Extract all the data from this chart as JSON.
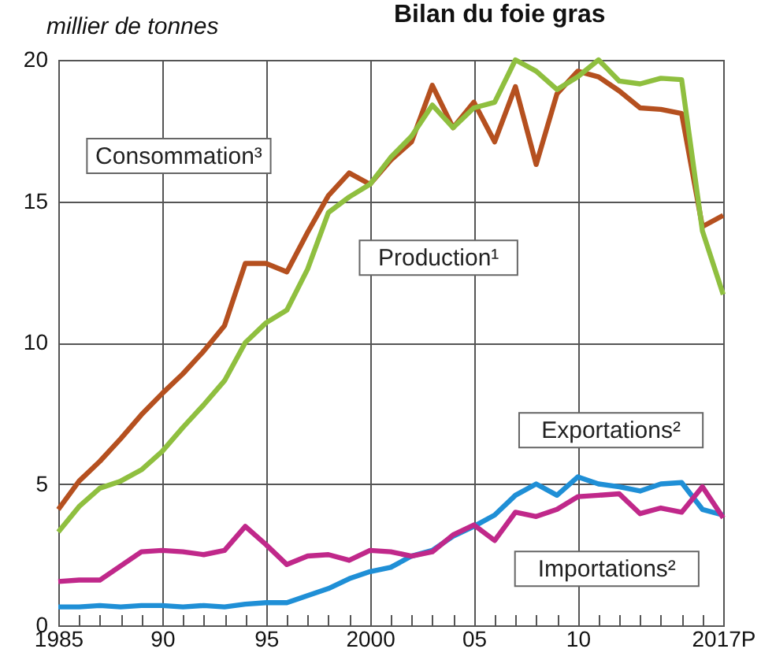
{
  "chart_data": {
    "type": "line",
    "title": "Bilan du foie gras",
    "ylabel": "millier de tonnes",
    "x": [
      1985,
      1986,
      1987,
      1988,
      1989,
      1990,
      1991,
      1992,
      1993,
      1994,
      1995,
      1996,
      1997,
      1998,
      1999,
      2000,
      2001,
      2002,
      2003,
      2004,
      2005,
      2006,
      2007,
      2008,
      2009,
      2010,
      2011,
      2012,
      2013,
      2014,
      2015,
      2016,
      2017
    ],
    "series": [
      {
        "name": "Consommation³",
        "color": "#b5501f",
        "values": [
          4.1,
          5.1,
          5.8,
          6.6,
          7.45,
          8.2,
          8.9,
          9.7,
          10.6,
          12.8,
          12.8,
          12.5,
          13.9,
          15.2,
          16.0,
          15.6,
          16.45,
          17.1,
          19.1,
          17.6,
          18.5,
          17.1,
          19.05,
          16.3,
          18.8,
          19.6,
          19.4,
          18.9,
          18.3,
          18.25,
          18.1,
          14.1,
          14.5
        ]
      },
      {
        "name": "Production¹",
        "color": "#8fbf3f",
        "values": [
          3.3,
          4.2,
          4.85,
          5.1,
          5.5,
          6.15,
          7.0,
          7.8,
          8.65,
          10.0,
          10.7,
          11.15,
          12.6,
          14.6,
          15.15,
          15.6,
          16.55,
          17.3,
          18.4,
          17.6,
          18.3,
          18.5,
          20.0,
          19.6,
          18.95,
          19.4,
          20.0,
          19.25,
          19.15,
          19.35,
          19.3,
          13.95,
          11.7
        ]
      },
      {
        "name": "Exportations²",
        "color": "#1f8fd6",
        "values": [
          0.65,
          0.65,
          0.7,
          0.65,
          0.7,
          0.7,
          0.65,
          0.7,
          0.65,
          0.75,
          0.8,
          0.8,
          1.05,
          1.3,
          1.65,
          1.9,
          2.05,
          2.45,
          2.65,
          3.15,
          3.5,
          3.9,
          4.6,
          5.0,
          4.6,
          5.25,
          5.0,
          4.9,
          4.75,
          5.0,
          5.05,
          4.1,
          3.9
        ]
      },
      {
        "name": "Importations²",
        "color": "#c0288a",
        "values": [
          1.55,
          1.6,
          1.6,
          2.1,
          2.6,
          2.65,
          2.6,
          2.5,
          2.65,
          3.5,
          2.85,
          2.15,
          2.45,
          2.5,
          2.3,
          2.65,
          2.6,
          2.45,
          2.6,
          3.2,
          3.55,
          3.0,
          4.0,
          3.85,
          4.1,
          4.55,
          4.6,
          4.65,
          3.95,
          4.15,
          4.0,
          4.9,
          3.8
        ]
      }
    ],
    "xlim": [
      1985,
      2017
    ],
    "xticks": [
      1985,
      {
        "value": 1986,
        "label": null
      },
      {
        "value": 1987,
        "label": null
      },
      {
        "value": 1988,
        "label": null
      },
      {
        "value": 1989,
        "label": null
      },
      {
        "value": 1990,
        "label": "90"
      },
      {
        "value": 1991,
        "label": null
      },
      {
        "value": 1992,
        "label": null
      },
      {
        "value": 1993,
        "label": null
      },
      {
        "value": 1994,
        "label": null
      },
      {
        "value": 1995,
        "label": "95"
      },
      {
        "value": 1996,
        "label": null
      },
      {
        "value": 1997,
        "label": null
      },
      {
        "value": 1998,
        "label": null
      },
      {
        "value": 1999,
        "label": null
      },
      2000,
      {
        "value": 2001,
        "label": null
      },
      {
        "value": 2002,
        "label": null
      },
      {
        "value": 2003,
        "label": null
      },
      {
        "value": 2004,
        "label": null
      },
      {
        "value": 2005,
        "label": "05"
      },
      {
        "value": 2006,
        "label": null
      },
      {
        "value": 2007,
        "label": null
      },
      {
        "value": 2008,
        "label": null
      },
      {
        "value": 2009,
        "label": null
      },
      {
        "value": 2010,
        "label": "10"
      },
      {
        "value": 2011,
        "label": null
      },
      {
        "value": 2012,
        "label": null
      },
      {
        "value": 2013,
        "label": null
      },
      {
        "value": 2014,
        "label": null
      },
      {
        "value": 2015,
        "label": null
      },
      {
        "value": 2016,
        "label": null
      },
      {
        "value": 2017,
        "label": "2017P"
      }
    ],
    "ylim": [
      0,
      20
    ],
    "yticks": [
      0,
      5,
      10,
      15,
      20
    ],
    "grid": true,
    "legend": false,
    "marker": "none",
    "line_style": "solid"
  }
}
